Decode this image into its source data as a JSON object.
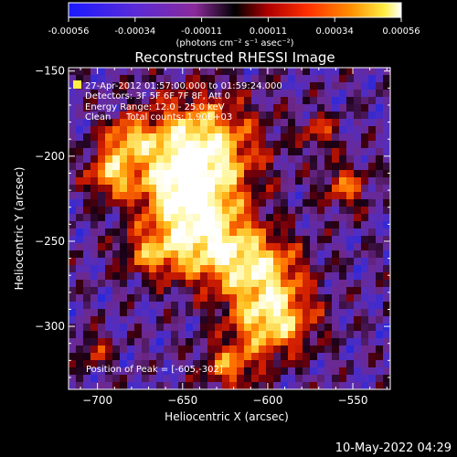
{
  "colorbar": {
    "ticks": [
      "-0.00056",
      "-0.00034",
      "-0.00011",
      "0.00011",
      "0.00034",
      "0.00056"
    ],
    "units": "(photons cm⁻² s⁻¹ asec⁻²)",
    "colors": [
      "#1a1aff",
      "#5a2ad8",
      "#8a2a9a",
      "#000000",
      "#b00000",
      "#ff3000",
      "#ff9000",
      "#ffee44",
      "#ffffff"
    ]
  },
  "annotations": {
    "time_range": "27-Apr-2012 01:57:00.000 to 01:59:24.000",
    "detectors": "Detectors: 3F 5F 6F 7F 8F, Att 0",
    "energy": "Energy Range: 12.0 - 25.0 keV",
    "clean": "Clean",
    "counts": "Total counts: 1.90E+03",
    "peak": "Position of Peak = [-605,-302]"
  },
  "footer": {
    "timestamp": "10-May-2022 04:29"
  },
  "chart_data": {
    "type": "heatmap",
    "title": "Reconstructed RHESSI Image",
    "xlabel": "Heliocentric X (arcsec)",
    "ylabel": "Heliocentric Y (arcsec)",
    "xlim": [
      -717,
      -528
    ],
    "ylim": [
      -337,
      -148
    ],
    "x_ticks": [
      -700,
      -650,
      -600,
      -550
    ],
    "y_ticks": [
      -150,
      -200,
      -250,
      -300
    ],
    "x_tick_labels": [
      "−700",
      "−650",
      "−600",
      "−550"
    ],
    "y_tick_labels": [
      "−150",
      "−200",
      "−250",
      "−300"
    ],
    "peak": [
      -605,
      -302
    ],
    "zlim": [
      -0.00056,
      0.00056
    ],
    "grid": false
  }
}
